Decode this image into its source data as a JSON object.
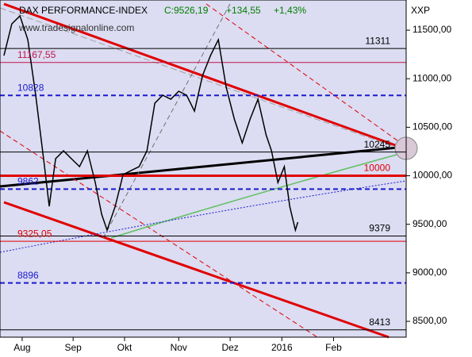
{
  "chart_data": {
    "type": "line",
    "title": "DAX PERFORMANCE-INDEX",
    "last_close": "C:9526,19",
    "change": "+134,55",
    "change_pct": "+1,43%",
    "currency": "XXP",
    "watermark": "www.tradesignalonline.com",
    "x": [
      1.6,
      4.8,
      8.1,
      11.3,
      14.5,
      17.7,
      20,
      22.6,
      25.8,
      29,
      32.3,
      35.5,
      38.7,
      41.3,
      43.5,
      46.8,
      50,
      53.2,
      56.5,
      59.7,
      62.9,
      66.1,
      69.4,
      72.6,
      75.8,
      79,
      82.3,
      85.5,
      88.7,
      91.9,
      95.2,
      98.4,
      101.6,
      104.8,
      108.1,
      110.3,
      112.9,
      115.5,
      117.7,
      120,
      121
    ],
    "series": [
      {
        "color": "#000000",
        "values": [
          11238,
          11565,
          11647,
          11402,
          10830,
          10176,
          9685,
          10176,
          10257,
          10176,
          10094,
          10257,
          9930,
          9603,
          9440,
          9685,
          10012,
          10053,
          10094,
          10257,
          10748,
          10830,
          10789,
          10871,
          10830,
          10666,
          11034,
          11238,
          11402,
          10911,
          10584,
          10339,
          10584,
          10789,
          10421,
          10257,
          9930,
          10094,
          9685,
          9440,
          9522
        ]
      }
    ],
    "xlim": [
      0,
      165
    ],
    "xticks": [
      {
        "value": 9,
        "label": "Aug"
      },
      {
        "value": 29.7,
        "label": "Sep"
      },
      {
        "value": 50.6,
        "label": "Okt"
      },
      {
        "value": 72.6,
        "label": "Nov"
      },
      {
        "value": 93.5,
        "label": "Dez"
      },
      {
        "value": 114.5,
        "label": "2016"
      },
      {
        "value": 135.5,
        "label": "Feb"
      }
    ],
    "ylim": [
      8337,
      11811
    ],
    "yticks": [
      {
        "value": 8500,
        "label": "8500,00"
      },
      {
        "value": 9000,
        "label": "9000,00"
      },
      {
        "value": 9500,
        "label": "9500,00"
      },
      {
        "value": 10000,
        "label": "10000,00"
      },
      {
        "value": 10500,
        "label": "10500,00"
      },
      {
        "value": 11000,
        "label": "11000,00"
      },
      {
        "value": 11500,
        "label": "11500,00"
      }
    ],
    "levels": [
      {
        "value": 11311,
        "label": "11311",
        "color": "#000000",
        "style": "solid",
        "side": "right"
      },
      {
        "value": 11167.55,
        "label": "11167,55",
        "color": "#c0144c",
        "style": "solid",
        "side": "left"
      },
      {
        "value": 10828,
        "label": "10828",
        "color": "#1a1ad0",
        "style": "dashed",
        "side": "left"
      },
      {
        "value": 10245,
        "label": "10245",
        "color": "#000000",
        "style": "solid",
        "side": "right"
      },
      {
        "value": 10000,
        "label": "10000",
        "color": "#e00000",
        "style": "thick",
        "side": "right"
      },
      {
        "value": 9862,
        "label": "9862",
        "color": "#1a1ad0",
        "style": "dashed",
        "side": "left"
      },
      {
        "value": 9379,
        "label": "9379",
        "color": "#000000",
        "style": "solid",
        "side": "right"
      },
      {
        "value": 9325.05,
        "label": "9325,05",
        "color": "#e00000",
        "style": "solid",
        "side": "left"
      },
      {
        "value": 8896,
        "label": "8896",
        "color": "#1a1ad0",
        "style": "dashed",
        "side": "left"
      },
      {
        "value": 8413,
        "label": "8413",
        "color": "#000000",
        "style": "solid",
        "side": "right"
      }
    ]
  }
}
